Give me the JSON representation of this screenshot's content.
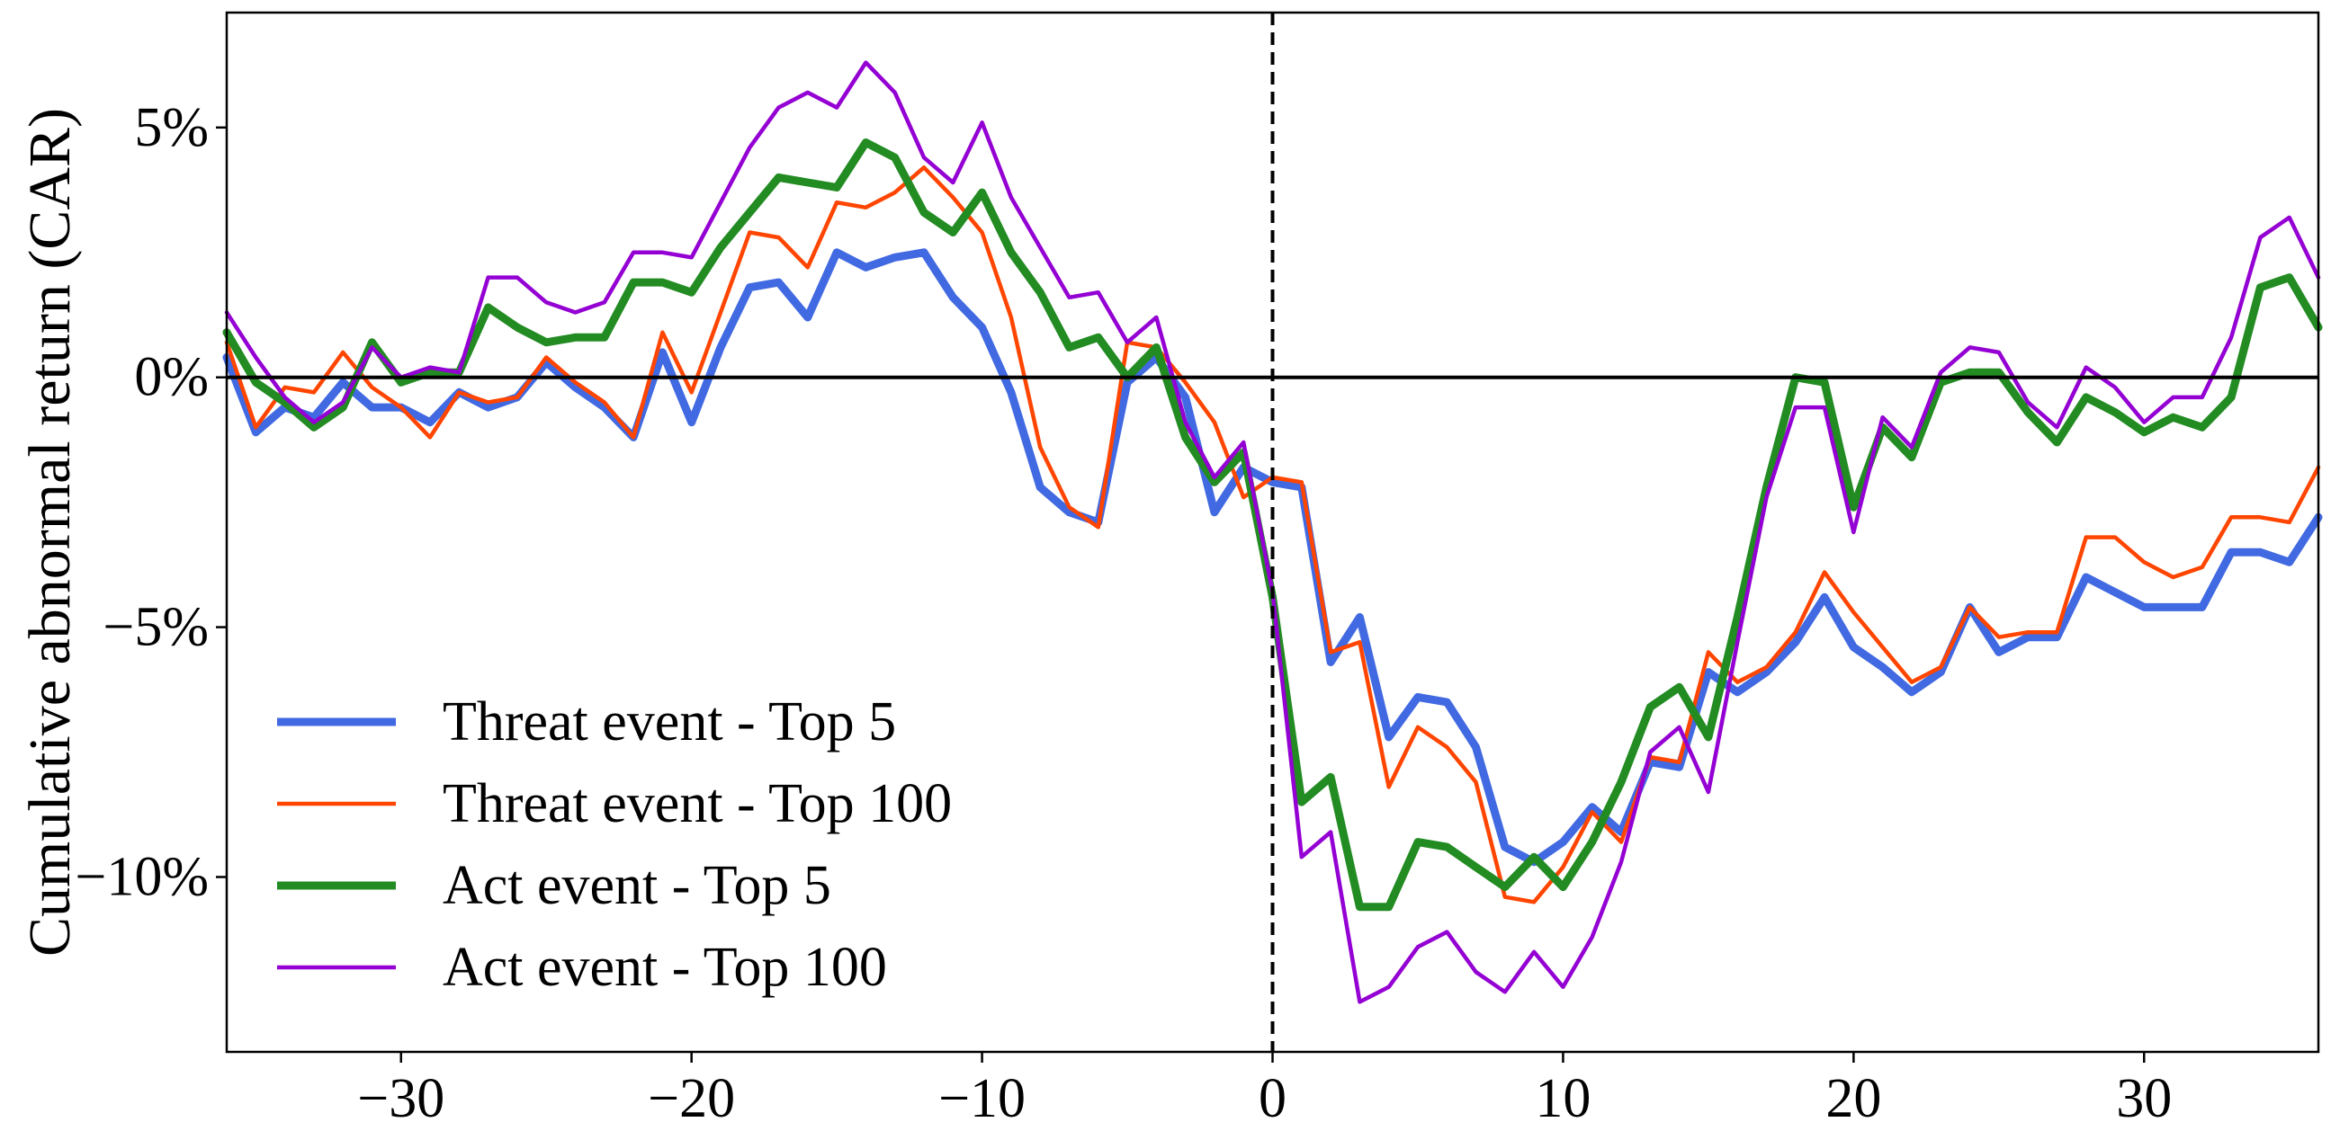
{
  "chart_data": {
    "type": "line",
    "title": "",
    "xlabel": "",
    "ylabel": "Cumulative abnormal return (CAR)",
    "xlim": [
      -36,
      36
    ],
    "ylim": [
      -13.5,
      7.3
    ],
    "xticks": [
      -30,
      -20,
      -10,
      0,
      10,
      20,
      30
    ],
    "xtick_labels": [
      "−30",
      "−20",
      "−10",
      "0",
      "10",
      "20",
      "30"
    ],
    "yticks": [
      -10,
      -5,
      0,
      5
    ],
    "ytick_labels": [
      "−10%",
      "−5%",
      "0%",
      "5%"
    ],
    "grid": false,
    "legend_position": "lower-left",
    "reference_lines": {
      "horizontal_y": 0,
      "vertical_dashed_x": 0
    },
    "x": [
      -36,
      -35,
      -34,
      -33,
      -32,
      -31,
      -30,
      -29,
      -28,
      -27,
      -26,
      -25,
      -24,
      -23,
      -22,
      -21,
      -20,
      -19,
      -18,
      -17,
      -16,
      -15,
      -14,
      -13,
      -12,
      -11,
      -10,
      -9,
      -8,
      -7,
      -6,
      -5,
      -4,
      -3,
      -2,
      -1,
      0,
      1,
      2,
      3,
      4,
      5,
      6,
      7,
      8,
      9,
      10,
      11,
      12,
      13,
      14,
      15,
      16,
      17,
      18,
      19,
      20,
      21,
      22,
      23,
      24,
      25,
      26,
      27,
      28,
      29,
      30,
      31,
      32,
      33,
      34,
      35,
      36
    ],
    "series": [
      {
        "name": "Threat event - Top 5",
        "color": "#4169E1",
        "width": 9,
        "values": [
          0.4,
          -1.1,
          -0.6,
          -0.8,
          -0.1,
          -0.6,
          -0.6,
          -0.9,
          -0.3,
          -0.6,
          -0.4,
          0.3,
          -0.2,
          -0.6,
          -1.2,
          0.5,
          -0.9,
          0.6,
          1.8,
          1.9,
          1.2,
          2.5,
          2.2,
          2.4,
          2.5,
          1.6,
          1.0,
          -0.3,
          -2.2,
          -2.7,
          -2.9,
          -0.1,
          0.4,
          -0.4,
          -2.7,
          -1.8,
          -2.1,
          -2.2,
          -5.7,
          -4.8,
          -7.2,
          -6.4,
          -6.5,
          -7.4,
          -9.4,
          -9.7,
          -9.3,
          -8.6,
          -9.1,
          -7.7,
          -7.8,
          -5.9,
          -6.3,
          -5.9,
          -5.3,
          -4.4,
          -5.4,
          -5.8,
          -6.3,
          -5.9,
          -4.6,
          -5.5,
          -5.2,
          -5.2,
          -4.0,
          -4.3,
          -4.6,
          -4.6,
          -4.6,
          -3.5,
          -3.5,
          -3.7,
          -2.8
        ]
      },
      {
        "name": "Threat event - Top 100",
        "color": "#FF4500",
        "width": 4.5,
        "values": [
          0.7,
          -1.0,
          -0.2,
          -0.3,
          0.5,
          -0.2,
          -0.6,
          -1.2,
          -0.3,
          -0.5,
          -0.4,
          0.4,
          -0.1,
          -0.5,
          -1.2,
          0.9,
          -0.3,
          1.3,
          2.9,
          2.8,
          2.2,
          3.5,
          3.4,
          3.7,
          4.2,
          3.6,
          2.9,
          1.2,
          -1.4,
          -2.6,
          -3.0,
          0.7,
          0.6,
          -0.1,
          -0.9,
          -2.4,
          -2.0,
          -2.1,
          -5.5,
          -5.3,
          -8.2,
          -7.0,
          -7.4,
          -8.1,
          -10.4,
          -10.5,
          -9.8,
          -8.7,
          -9.3,
          -7.6,
          -7.7,
          -5.5,
          -6.1,
          -5.8,
          -5.1,
          -3.9,
          -4.7,
          -5.4,
          -6.1,
          -5.8,
          -4.6,
          -5.2,
          -5.1,
          -5.1,
          -3.2,
          -3.2,
          -3.7,
          -4.0,
          -3.8,
          -2.8,
          -2.8,
          -2.9,
          -1.8
        ]
      },
      {
        "name": "Act event - Top 5",
        "color": "#228B22",
        "width": 9,
        "values": [
          0.9,
          -0.1,
          -0.5,
          -1.0,
          -0.6,
          0.7,
          -0.1,
          0.1,
          0.1,
          1.4,
          1.0,
          0.7,
          0.8,
          0.8,
          1.9,
          1.9,
          1.7,
          2.6,
          3.3,
          4.0,
          3.9,
          3.8,
          4.7,
          4.4,
          3.3,
          2.9,
          3.7,
          2.5,
          1.7,
          0.6,
          0.8,
          0.0,
          0.6,
          -1.2,
          -2.1,
          -1.5,
          -4.4,
          -8.5,
          -8.0,
          -10.6,
          -10.6,
          -9.3,
          -9.4,
          -9.8,
          -10.2,
          -9.6,
          -10.2,
          -9.3,
          -8.1,
          -6.6,
          -6.2,
          -7.2,
          -4.8,
          -2.2,
          0.0,
          -0.1,
          -2.6,
          -1.0,
          -1.6,
          -0.1,
          0.1,
          0.1,
          -0.7,
          -1.3,
          -0.4,
          -0.7,
          -1.1,
          -0.8,
          -1.0,
          -0.4,
          1.8,
          2.0,
          1.0
        ]
      },
      {
        "name": "Act event - Top 100",
        "color": "#9400D3",
        "width": 4.5,
        "values": [
          1.3,
          0.4,
          -0.4,
          -0.9,
          -0.5,
          0.6,
          0.0,
          0.2,
          0.1,
          2.0,
          2.0,
          1.5,
          1.3,
          1.5,
          2.5,
          2.5,
          2.4,
          3.5,
          4.6,
          5.4,
          5.7,
          5.4,
          6.3,
          5.7,
          4.4,
          3.9,
          5.1,
          3.6,
          2.6,
          1.6,
          1.7,
          0.7,
          1.2,
          -0.9,
          -2.0,
          -1.3,
          -4.3,
          -9.6,
          -9.1,
          -12.5,
          -12.2,
          -11.4,
          -11.1,
          -11.9,
          -12.3,
          -11.5,
          -12.2,
          -11.2,
          -9.7,
          -7.5,
          -7.0,
          -8.3,
          -5.3,
          -2.4,
          -0.6,
          -0.6,
          -3.1,
          -0.8,
          -1.4,
          0.1,
          0.6,
          0.5,
          -0.5,
          -1.0,
          0.2,
          -0.2,
          -0.9,
          -0.4,
          -0.4,
          0.8,
          2.8,
          3.2,
          2.0
        ]
      }
    ]
  }
}
